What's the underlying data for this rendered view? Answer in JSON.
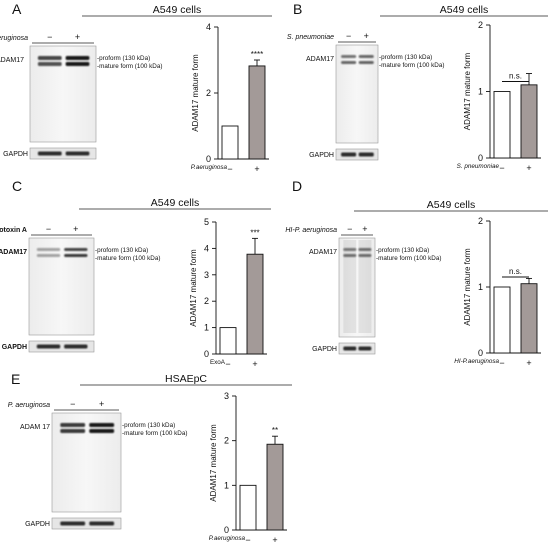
{
  "panels": [
    {
      "letter": "A",
      "cell_type": "A549 cells",
      "treatment_blot": "P. aeruginosa",
      "treatment_axis": "P.aeruginosa",
      "treatment_italic": true,
      "label_bold": false,
      "protein": "ADAM17",
      "proform": "-proform (130 kDa)",
      "mature": "-mature form (100 kDa)",
      "loading": "GAPDH",
      "lanes": [
        "−",
        "+"
      ]
    },
    {
      "letter": "B",
      "cell_type": "A549 cells",
      "treatment_blot": "S. pneumoniae",
      "treatment_axis": "S. pneumoniae",
      "treatment_italic": true,
      "label_bold": false,
      "protein": "ADAM17",
      "proform": "-proform (130 kDa)",
      "mature": "-mature form (100 kDa)",
      "loading": "GAPDH",
      "lanes": [
        "−",
        "+"
      ]
    },
    {
      "letter": "C",
      "cell_type": "A549 cells",
      "treatment_blot": "Exotoxin A",
      "treatment_axis": "ExoA",
      "treatment_italic": false,
      "label_bold": true,
      "protein": "ADAM17",
      "proform": "-proform (130 kDa)",
      "mature": "-mature form (100 kDa)",
      "loading": "GAPDH",
      "lanes": [
        "−",
        "+"
      ]
    },
    {
      "letter": "D",
      "cell_type": "A549 cells",
      "treatment_blot": "HI-P. aeruginosa",
      "treatment_axis": "HI-P.aeruginosa",
      "treatment_italic": true,
      "label_bold": false,
      "protein": "ADAM17",
      "proform": "-proform (130 kDa)",
      "mature": "-mature form (100 kDa)",
      "loading": "GAPDH",
      "lanes": [
        "−",
        "+"
      ]
    },
    {
      "letter": "E",
      "cell_type": "HSAEpC",
      "treatment_blot": "P. aeruginosa",
      "treatment_axis": "P.aeruginosa",
      "treatment_italic": true,
      "label_bold": false,
      "protein": "ADAM 17",
      "proform": "-proform (130 kDa)",
      "mature": "-mature form (100 kDa)",
      "loading": "GAPDH",
      "lanes": [
        "−",
        "+"
      ]
    }
  ],
  "chart_data": [
    {
      "type": "bar",
      "panel": "A",
      "ylabel": "ADAM17 mature form",
      "xlabel": "P.aeruginosa",
      "categories": [
        "−",
        "+"
      ],
      "values": [
        1.0,
        2.82
      ],
      "errors": [
        0,
        0.18
      ],
      "significance": "****",
      "ylim": [
        0,
        4
      ],
      "yticks": [
        0,
        2,
        4
      ],
      "bar_colors": [
        "#ffffff",
        "#a39a98"
      ]
    },
    {
      "type": "bar",
      "panel": "B",
      "ylabel": "ADAM17 mature form",
      "xlabel": "S. pneumoniae",
      "categories": [
        "−",
        "+"
      ],
      "values": [
        1.0,
        1.1
      ],
      "errors": [
        0,
        0.17
      ],
      "significance": "n.s.",
      "ylim": [
        0,
        2
      ],
      "yticks": [
        0,
        1,
        2
      ],
      "bar_colors": [
        "#ffffff",
        "#a39a98"
      ]
    },
    {
      "type": "bar",
      "panel": "C",
      "ylabel": "ADAM17 mature form",
      "xlabel": "ExoA",
      "categories": [
        "−",
        "+"
      ],
      "values": [
        1.0,
        3.78
      ],
      "errors": [
        0,
        0.6
      ],
      "significance": "***",
      "ylim": [
        0,
        5
      ],
      "yticks": [
        0,
        1,
        2,
        3,
        4,
        5
      ],
      "bar_colors": [
        "#ffffff",
        "#a39a98"
      ]
    },
    {
      "type": "bar",
      "panel": "D",
      "ylabel": "ADAM17 mature form",
      "xlabel": "HI-P.aeruginosa",
      "categories": [
        "−",
        "+"
      ],
      "values": [
        1.0,
        1.05
      ],
      "errors": [
        0,
        0.08
      ],
      "significance": "n.s.",
      "ylim": [
        0,
        2
      ],
      "yticks": [
        0,
        1,
        2
      ],
      "bar_colors": [
        "#ffffff",
        "#a39a98"
      ]
    },
    {
      "type": "bar",
      "panel": "E",
      "ylabel": "ADAM17 mature form",
      "xlabel": "P.aeruginosa",
      "categories": [
        "−",
        "+"
      ],
      "values": [
        1.0,
        1.92
      ],
      "errors": [
        0,
        0.18
      ],
      "significance": "**",
      "ylim": [
        0,
        3
      ],
      "yticks": [
        0,
        1,
        2,
        3
      ],
      "bar_colors": [
        "#ffffff",
        "#a39a98"
      ]
    }
  ]
}
